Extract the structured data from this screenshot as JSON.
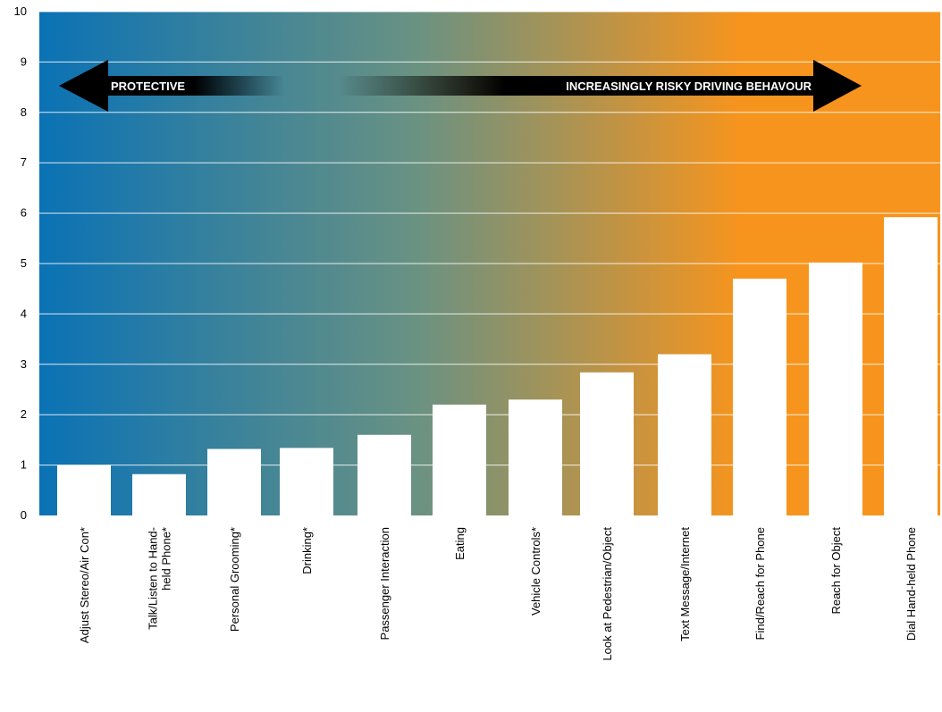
{
  "chart_data": {
    "type": "bar",
    "title": "",
    "xlabel": "",
    "ylabel": "",
    "ylim": [
      0,
      10
    ],
    "yticks": [
      0,
      1,
      2,
      3,
      4,
      5,
      6,
      7,
      8,
      9,
      10
    ],
    "grid": true,
    "categories": [
      "Adjust Stereo/Air Con*",
      "Talk/Listen to Hand-held Phone*",
      "Personal Grooming*",
      "Drinking*",
      "Passenger Interaction",
      "Eating",
      "Vehicle Controls*",
      "Look at Pedestrian/Object",
      "Text Message/Internet",
      "Find/Reach for Phone",
      "Reach for Object",
      "Dial Hand-held Phone"
    ],
    "category_lines": [
      [
        "Adjust Stereo/Air Con*"
      ],
      [
        "Talk/Listen to Hand-",
        "held Phone*"
      ],
      [
        "Personal Grooming*"
      ],
      [
        "Drinking*"
      ],
      [
        "Passenger Interaction"
      ],
      [
        "Eating"
      ],
      [
        "Vehicle Controls*"
      ],
      [
        "Look at Pedestrian/Object"
      ],
      [
        "Text Message/Internet"
      ],
      [
        "Find/Reach for Phone"
      ],
      [
        "Reach for Object"
      ],
      [
        "Dial Hand-held Phone"
      ]
    ],
    "values": [
      1.0,
      0.82,
      1.32,
      1.34,
      1.6,
      2.2,
      2.3,
      2.84,
      3.2,
      4.7,
      5.02,
      5.92
    ],
    "bar_color": "#ffffff",
    "background_gradient": [
      "#0a72b5",
      "#6a9282",
      "#f7941d"
    ],
    "annotations": {
      "left_arrow": "PROTECTIVE",
      "right_arrow": "INCREASINGLY RISKY DRIVING BEHAVOUR",
      "arrow_color": "#000000"
    }
  }
}
